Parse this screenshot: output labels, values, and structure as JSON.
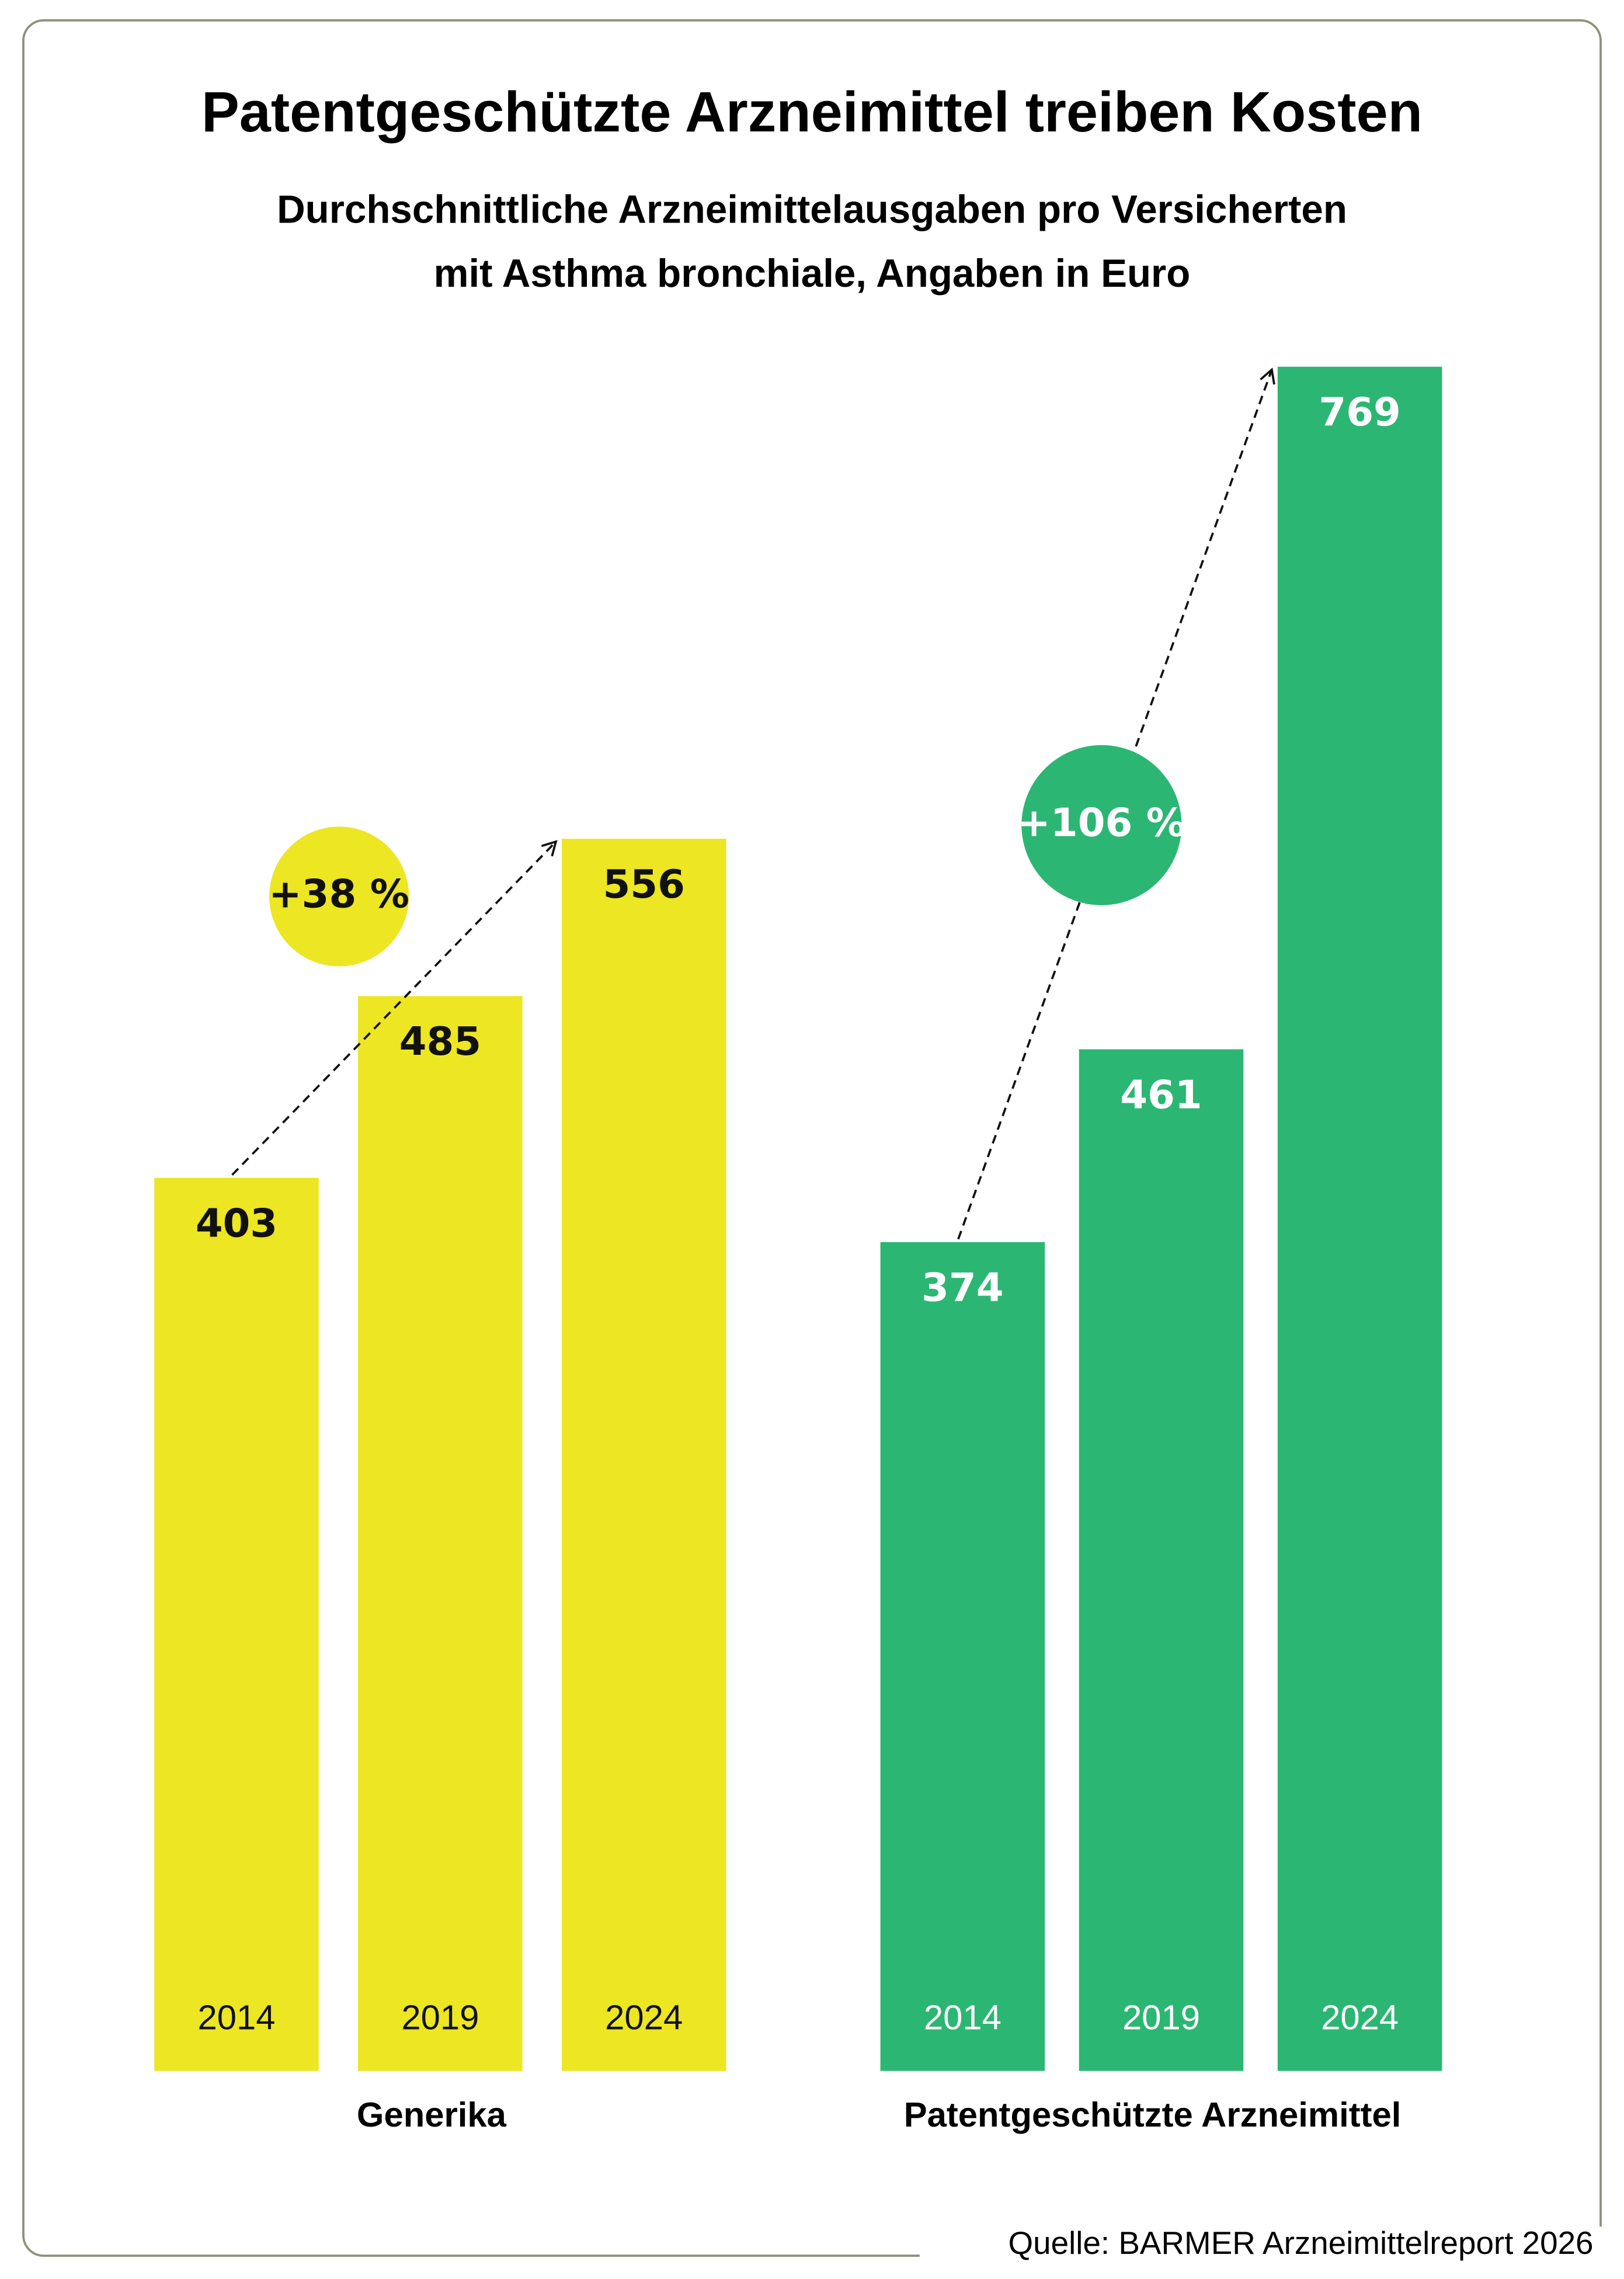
{
  "title": "Patentgeschützte Arzneimittel treiben Kosten",
  "subtitle": [
    "Durchschnittliche Arzneimittelausgaben pro Versicherten",
    "mit Asthma bronchiale, Angaben in Euro"
  ],
  "source": "Quelle: BARMER Arzneimittelreport 2026",
  "chart_data": [
    {
      "type": "bar",
      "group_label": "Generika",
      "categories": [
        "2014",
        "2019",
        "2024"
      ],
      "values": [
        403,
        485,
        556
      ],
      "color": "#ece623",
      "label_color": "#111111",
      "annotation": "+38 %"
    },
    {
      "type": "bar",
      "group_label": "Patentgeschützte Arzneimittel",
      "categories": [
        "2014",
        "2019",
        "2024"
      ],
      "values": [
        374,
        461,
        769
      ],
      "color": "#2cb673",
      "label_color": "#ffffff",
      "annotation": "+106 %"
    }
  ]
}
